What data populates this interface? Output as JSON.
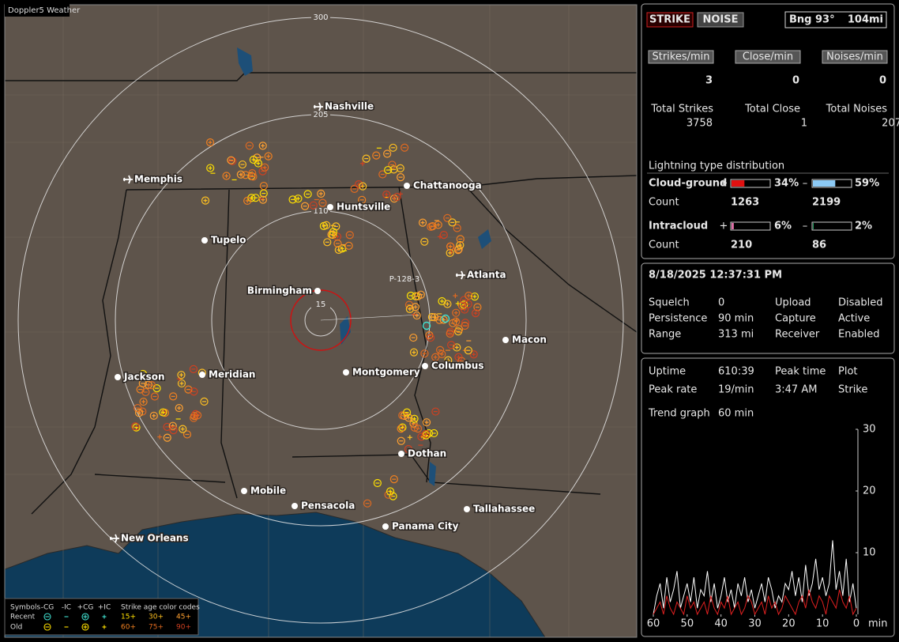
{
  "map": {
    "title": "Doppler5 Weather",
    "ring_labels": [
      "300",
      "205",
      "110",
      "15"
    ],
    "station_label": "P-128-3",
    "cities": [
      {
        "name": "Nashville",
        "airport": true
      },
      {
        "name": "Memphis",
        "airport": true
      },
      {
        "name": "Chattanooga",
        "airport": false
      },
      {
        "name": "Huntsville",
        "airport": false
      },
      {
        "name": "Tupelo",
        "airport": false
      },
      {
        "name": "Atlanta",
        "airport": true
      },
      {
        "name": "Birmingham",
        "airport": false
      },
      {
        "name": "Macon",
        "airport": false
      },
      {
        "name": "Columbus",
        "airport": false
      },
      {
        "name": "Montgomery",
        "airport": false
      },
      {
        "name": "Jackson",
        "airport": false
      },
      {
        "name": "Meridian",
        "airport": false
      },
      {
        "name": "Dothan",
        "airport": false
      },
      {
        "name": "Mobile",
        "airport": false
      },
      {
        "name": "Pensacola",
        "airport": false
      },
      {
        "name": "Tallahassee",
        "airport": false
      },
      {
        "name": "Panama City",
        "airport": false
      },
      {
        "name": "New Orleans",
        "airport": true
      }
    ]
  },
  "legend": {
    "symbols_label": "Symbols",
    "symbol_headers": [
      "-CG",
      "-IC",
      "+CG",
      "+IC"
    ],
    "age_header": "Strike age color codes",
    "rows": [
      {
        "label": "Recent",
        "ages": [
          "15+",
          "30+",
          "45+"
        ]
      },
      {
        "label": "Old",
        "ages": [
          "60+",
          "75+",
          "90+"
        ]
      }
    ]
  },
  "status": {
    "strike_button": "STRIKE",
    "noise_button": "NOISE",
    "bearing": "Bng 93°",
    "distance": "104mi",
    "rates": [
      {
        "label": "Strikes/min",
        "value": 3
      },
      {
        "label": "Close/min",
        "value": 0
      },
      {
        "label": "Noises/min",
        "value": 0
      }
    ],
    "totals": [
      {
        "label": "Total Strikes",
        "value": 3758
      },
      {
        "label": "Total Close",
        "value": 1
      },
      {
        "label": "Total Noises",
        "value": 207
      }
    ],
    "distribution_title": "Lightning type distribution",
    "signs": [
      "+",
      "–"
    ],
    "count_label": "Count",
    "types": [
      {
        "name": "Cloud-ground",
        "positive": {
          "value": 34,
          "label": "34%",
          "color": "#e01010"
        },
        "negative": {
          "value": 59,
          "label": "59%",
          "color": "#8ccaf5"
        },
        "positive_count": 1263,
        "negative_count": 2199
      },
      {
        "name": "Intracloud",
        "positive": {
          "value": 6,
          "label": "6%",
          "color": "#e070a8"
        },
        "negative": {
          "value": 2,
          "label": "2%",
          "color": "#20a060"
        },
        "positive_count": 210,
        "negative_count": 86
      }
    ]
  },
  "settings": {
    "datetime": "8/18/2025 12:37:31 PM",
    "rows": [
      [
        "Squelch",
        "0",
        "Upload",
        "Disabled"
      ],
      [
        "Persistence",
        "90 min",
        "Capture",
        "Active"
      ],
      [
        "Range",
        "313 mi",
        "Receiver",
        "Enabled"
      ]
    ]
  },
  "stats": {
    "rows": [
      [
        "Uptime",
        "610:39",
        "Peak time",
        "Plot"
      ],
      [
        "Peak rate",
        "19/min",
        "3:47 AM",
        "Strike"
      ],
      [
        "Trend graph",
        "60 min"
      ]
    ]
  },
  "trend": {
    "ylim": [
      0,
      30
    ],
    "yticks": [
      10,
      20,
      30
    ],
    "xlim": [
      60,
      0
    ],
    "xticks": [
      60,
      50,
      40,
      30,
      20,
      10,
      0
    ],
    "x_unit": "min",
    "series": [
      {
        "color": "#ffffff",
        "values": [
          0,
          3,
          5,
          1,
          6,
          2,
          4,
          7,
          1,
          3,
          5,
          2,
          6,
          1,
          4,
          3,
          7,
          2,
          5,
          1,
          3,
          6,
          2,
          4,
          1,
          5,
          3,
          6,
          2,
          4,
          1,
          3,
          5,
          2,
          6,
          4,
          1,
          3,
          2,
          5,
          4,
          7,
          3,
          6,
          2,
          8,
          3,
          5,
          9,
          4,
          6,
          3,
          5,
          12,
          4,
          7,
          3,
          9,
          2,
          5,
          1
        ]
      },
      {
        "color": "#e02020",
        "values": [
          0,
          1,
          2,
          0,
          3,
          1,
          0,
          2,
          1,
          0,
          3,
          1,
          2,
          0,
          1,
          2,
          0,
          3,
          1,
          0,
          2,
          1,
          3,
          0,
          1,
          2,
          0,
          1,
          3,
          2,
          0,
          1,
          2,
          0,
          3,
          1,
          2,
          0,
          1,
          3,
          2,
          1,
          0,
          2,
          3,
          1,
          4,
          2,
          1,
          3,
          2,
          0,
          3,
          2,
          1,
          4,
          2,
          1,
          3,
          0,
          1
        ]
      }
    ]
  }
}
